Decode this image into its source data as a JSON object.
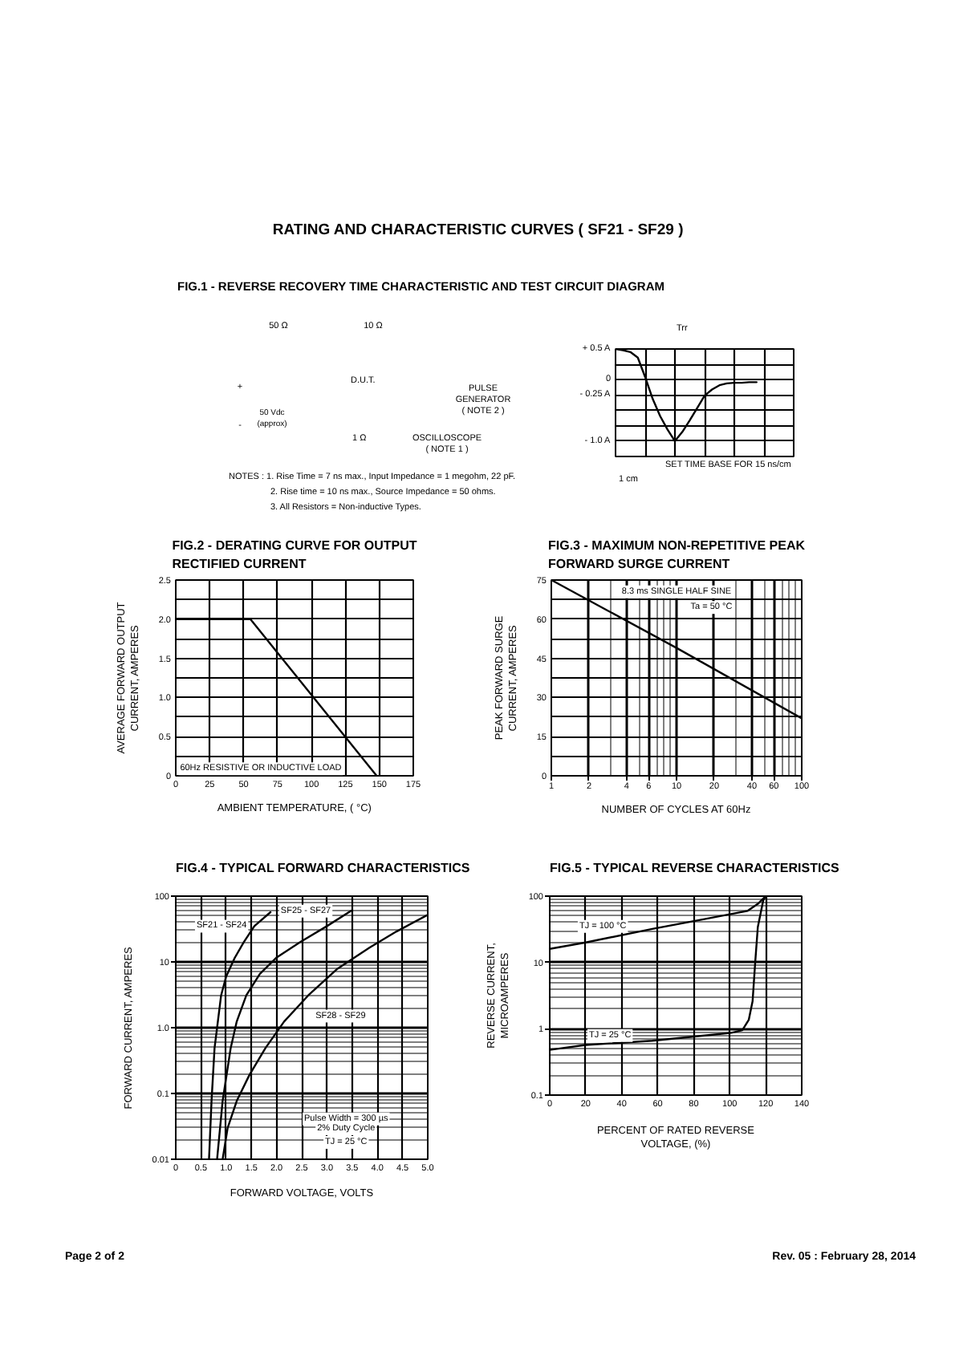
{
  "chart_data": [
    {
      "type": "other",
      "title": "RATING AND CHARACTERISTIC CURVES ( SF21 - SF29 )",
      "subtitle": "FIG.1 - REVERSE RECOVERY TIME CHARACTERISTIC AND TEST CIRCUIT DIAGRAM"
    },
    {
      "type": "other",
      "annotations": [
        "50 Ω",
        "10 Ω",
        "D.U.T.",
        "PULSE GENERATOR ( NOTE 2 )",
        "+",
        "-",
        "50 Vdc (approx)",
        "1 Ω",
        "OSCILLOSCOPE ( NOTE 1 )",
        "NOTES :  1. Rise Time = 7 ns max., Input Impedance = 1 megohm, 22 pF.",
        "2. Rise time = 10 ns max., Source Impedance = 50 ohms.",
        "3. All Resistors = Non-inductive Types."
      ]
    },
    {
      "type": "line",
      "categories": [
        null,
        null,
        null,
        null,
        null,
        null,
        null,
        null,
        null,
        null,
        null,
        null,
        null,
        null,
        null,
        null,
        null,
        null,
        null,
        null,
        null,
        null,
        null,
        null,
        null
      ],
      "values": [
        0.5,
        0.48,
        0.45,
        0.36,
        0.04,
        -0.31,
        -0.59,
        -0.81,
        -1.0,
        -0.85,
        -0.66,
        -0.46,
        -0.26,
        -0.16,
        -0.09,
        -0.06,
        -0.05,
        -0.05,
        -0.04,
        -0.04,
        null,
        null,
        null,
        null,
        null
      ],
      "color": "#000000",
      "ylim": [
        -1.25,
        0.5
      ],
      "yticks": [
        {
          "value": 0.5,
          "label": "+ 0.5 A"
        },
        {
          "value": 0.25,
          "label": null
        },
        0,
        {
          "value": -0.25,
          "label": "- 0.25 A"
        },
        {
          "value": -0.5,
          "label": null
        },
        {
          "value": -0.75,
          "label": null
        },
        {
          "value": -1.0,
          "label": "- 1.0 A"
        },
        {
          "value": -1.25,
          "label": null
        }
      ],
      "grid": true,
      "tick_labels": "y",
      "annotations": [
        "Trr",
        "SET TIME BASE FOR  15 ns/cm",
        "1 cm"
      ]
    },
    {
      "type": "line",
      "title": "FIG.2 - DERATING CURVE FOR OUTPUT RECTIFIED CURRENT",
      "xlabel": "AMBIENT TEMPERATURE, ( °C)",
      "ylabel": "AVERAGE FORWARD OUTPUT CURRENT, AMPERES",
      "x": [
        0,
        55,
        148
      ],
      "values": [
        2.0,
        2.0,
        0
      ],
      "color": "#000000",
      "xlim": [
        0,
        175
      ],
      "xticks": [
        0,
        25,
        50,
        75,
        100,
        125,
        150,
        175
      ],
      "ylim": [
        0,
        2.5
      ],
      "yticks": [
        0,
        {
          "value": 0.25,
          "label": null
        },
        0.5,
        {
          "value": 0.75,
          "label": null
        },
        {
          "value": 1,
          "label": "1.0"
        },
        {
          "value": 1.25,
          "label": null
        },
        1.5,
        {
          "value": 1.75,
          "label": null
        },
        {
          "value": 2,
          "label": "2.0"
        },
        {
          "value": 2.25,
          "label": null
        },
        2.5
      ],
      "grid": true,
      "annotations": [
        "60Hz RESISTIVE OR INDUCTIVE LOAD"
      ]
    },
    {
      "type": "line",
      "title": "FIG.3 - MAXIMUM NON-REPETITIVE PEAK FORWARD SURGE CURRENT",
      "xlabel": "NUMBER OF CYCLES AT 60Hz",
      "ylabel": "PEAK FORWARD SURGE CURRENT, AMPERES",
      "log": "x",
      "x": [
        1,
        10,
        100
      ],
      "values": [
        75,
        49,
        22
      ],
      "color": "#000000",
      "xlim": [
        1,
        100
      ],
      "xticks": [
        1,
        2,
        {
          "value": 3,
          "label": null
        },
        4,
        {
          "value": 5,
          "label": null
        },
        6,
        {
          "value": 7,
          "label": null
        },
        {
          "value": 8,
          "label": null
        },
        {
          "value": 9,
          "label": null
        },
        10,
        20,
        {
          "value": 30,
          "label": null
        },
        40,
        {
          "value": 50,
          "label": null
        },
        60,
        {
          "value": 70,
          "label": null
        },
        {
          "value": 80,
          "label": null
        },
        {
          "value": 90,
          "label": null
        },
        100
      ],
      "ylim": [
        0,
        75
      ],
      "yticks": [
        0,
        {
          "value": 7.5,
          "label": null
        },
        15,
        {
          "value": 22.5,
          "label": null
        },
        30,
        {
          "value": 37.5,
          "label": null
        },
        45,
        {
          "value": 52.5,
          "label": null
        },
        60,
        {
          "value": 67.5,
          "label": null
        },
        75
      ],
      "grid": true,
      "annotations": [
        "8.3 ms SINGLE HALF SINE",
        "Ta = 50 °C"
      ]
    },
    {
      "type": "line",
      "title": "FIG.4 - TYPICAL FORWARD CHARACTERISTICS",
      "xlabel": "FORWARD VOLTAGE, VOLTS",
      "ylabel": "FORWARD CURRENT, AMPERES",
      "log": "y",
      "xlim": [
        0,
        5
      ],
      "xticks": [
        0,
        0.5,
        {
          "value": 1,
          "label": "1.0"
        },
        1.5,
        {
          "value": 2,
          "label": "2.0"
        },
        2.5,
        {
          "value": 3,
          "label": "3.0"
        },
        3.5,
        {
          "value": 4,
          "label": "4.0"
        },
        4.5,
        {
          "value": 5,
          "label": "5.0"
        }
      ],
      "ylim": [
        0.01,
        100
      ],
      "yticks": [
        0.01,
        {
          "value": 0.02,
          "label": null
        },
        {
          "value": 0.03,
          "label": null
        },
        {
          "value": 0.04,
          "label": null
        },
        {
          "value": 0.05,
          "label": null
        },
        {
          "value": 0.06,
          "label": null
        },
        {
          "value": 0.07,
          "label": null
        },
        {
          "value": 0.08,
          "label": null
        },
        {
          "value": 0.09,
          "label": null
        },
        0.1,
        {
          "value": 0.2,
          "label": null
        },
        {
          "value": 0.3,
          "label": null
        },
        {
          "value": 0.4,
          "label": null
        },
        {
          "value": 0.5,
          "label": null
        },
        {
          "value": 0.6,
          "label": null
        },
        {
          "value": 0.7,
          "label": null
        },
        {
          "value": 0.8,
          "label": null
        },
        {
          "value": 0.9,
          "label": null
        },
        {
          "value": 1,
          "label": "1.0"
        },
        {
          "value": 2,
          "label": null
        },
        {
          "value": 3,
          "label": null
        },
        {
          "value": 4,
          "label": null
        },
        {
          "value": 5,
          "label": null
        },
        {
          "value": 6,
          "label": null
        },
        {
          "value": 7,
          "label": null
        },
        {
          "value": 8,
          "label": null
        },
        {
          "value": 9,
          "label": null
        },
        10,
        {
          "value": 20,
          "label": null
        },
        {
          "value": 30,
          "label": null
        },
        {
          "value": 40,
          "label": null
        },
        {
          "value": 50,
          "label": null
        },
        {
          "value": 60,
          "label": null
        },
        {
          "value": 70,
          "label": null
        },
        {
          "value": 80,
          "label": null
        },
        {
          "value": 90,
          "label": null
        },
        100
      ],
      "grid": true,
      "series": [
        {
          "name": "SF21 - SF24",
          "color": "#000000",
          "x": [
            0.66,
            0.71,
            0.77,
            0.9,
            1.0,
            1.17,
            1.35,
            1.56,
            1.88
          ],
          "values": [
            0.01,
            0.077,
            0.49,
            3.1,
            6.0,
            11.5,
            20,
            35,
            57
          ]
        },
        {
          "name": "SF25 - SF27",
          "color": "#000000",
          "x": [
            0.82,
            0.93,
            1.09,
            1.21,
            1.4,
            1.67,
            1.99,
            2.47,
            3.0,
            3.48
          ],
          "values": [
            0.01,
            0.077,
            0.49,
            1.24,
            3.1,
            6.6,
            11.5,
            20,
            35,
            60
          ]
        },
        {
          "name": "SF28 - SF29",
          "color": "#000000",
          "x": [
            0.93,
            1.03,
            1.21,
            1.46,
            1.78,
            2.15,
            2.63,
            3.21,
            3.85,
            4.38,
            5.0
          ],
          "values": [
            0.01,
            0.03,
            0.077,
            0.19,
            0.49,
            1.24,
            3.1,
            7.9,
            16.6,
            29,
            52
          ]
        }
      ],
      "annotations": [
        "Pulse Width = 300 µs",
        "2% Duty Cycle",
        "TJ = 25 °C"
      ]
    },
    {
      "type": "line",
      "title": "FIG.5 - TYPICAL REVERSE CHARACTERISTICS",
      "xlabel": "PERCENT OF RATED REVERSE VOLTAGE, (%)",
      "ylabel": "REVERSE CURRENT, MICROAMPERES",
      "log": "y",
      "xlim": [
        0,
        140
      ],
      "xticks": [
        0,
        20,
        40,
        60,
        80,
        100,
        120,
        140
      ],
      "ylim": [
        0.1,
        100
      ],
      "yticks": [
        0.1,
        {
          "value": 0.2,
          "label": null
        },
        {
          "value": 0.3,
          "label": null
        },
        {
          "value": 0.4,
          "label": null
        },
        {
          "value": 0.5,
          "label": null
        },
        {
          "value": 0.6,
          "label": null
        },
        {
          "value": 0.7,
          "label": null
        },
        {
          "value": 0.8,
          "label": null
        },
        {
          "value": 0.9,
          "label": null
        },
        1,
        {
          "value": 2,
          "label": null
        },
        {
          "value": 3,
          "label": null
        },
        {
          "value": 4,
          "label": null
        },
        {
          "value": 5,
          "label": null
        },
        {
          "value": 6,
          "label": null
        },
        {
          "value": 7,
          "label": null
        },
        {
          "value": 8,
          "label": null
        },
        {
          "value": 9,
          "label": null
        },
        10,
        {
          "value": 20,
          "label": null
        },
        {
          "value": 30,
          "label": null
        },
        {
          "value": 40,
          "label": null
        },
        {
          "value": 50,
          "label": null
        },
        {
          "value": 60,
          "label": null
        },
        {
          "value": 70,
          "label": null
        },
        {
          "value": 80,
          "label": null
        },
        {
          "value": 90,
          "label": null
        },
        100
      ],
      "grid": true,
      "series": [
        {
          "name": "TJ = 100 °C",
          "color": "#000000",
          "x": [
            0,
            20,
            57,
            86,
            110,
            116,
            120
          ],
          "values": [
            16,
            20,
            32,
            45,
            60,
            78,
            100
          ]
        },
        {
          "name": "TJ = 25 °C",
          "color": "#000000",
          "x": [
            0,
            20,
            57,
            86,
            101,
            107,
            110.6,
            112.7,
            114.1,
            115.6,
            118.6,
            120
          ],
          "values": [
            0.48,
            0.57,
            0.66,
            0.79,
            0.87,
            0.95,
            1.37,
            2.6,
            9.5,
            34,
            86,
            100
          ]
        }
      ]
    },
    {
      "type": "other",
      "annotations": [
        "Page 2 of 2",
        "Rev. 05 : February 28, 2014"
      ]
    }
  ]
}
